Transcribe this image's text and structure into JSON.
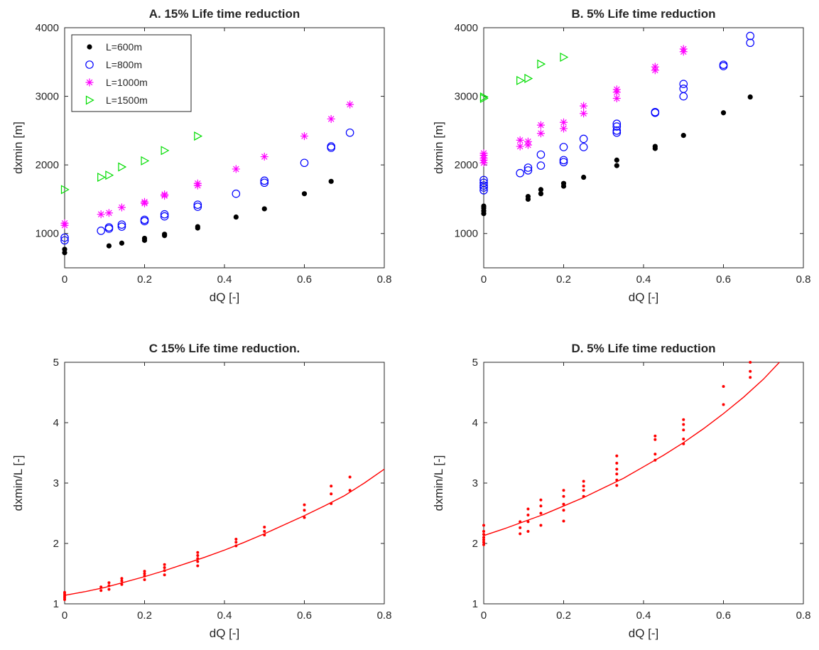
{
  "chart_data": [
    {
      "type": "scatter",
      "title": "A. 15% Life time reduction",
      "xlabel": "dQ [-]",
      "ylabel": "dxmin [m]",
      "xlim": [
        0,
        0.8
      ],
      "ylim": [
        500,
        4000
      ],
      "xticks": [
        "0",
        "0.2",
        "0.4",
        "0.6",
        "0.8"
      ],
      "yticks": [
        "1000",
        "2000",
        "3000",
        "4000"
      ],
      "legend_position": "top-left",
      "series": [
        {
          "name": "L=600m",
          "marker": "dot",
          "color": "#000000",
          "x": [
            0,
            0,
            0.111,
            0.143,
            0.2,
            0.2,
            0.25,
            0.25,
            0.333,
            0.333,
            0.429,
            0.5,
            0.6,
            0.667
          ],
          "y": [
            720,
            770,
            820,
            860,
            900,
            930,
            970,
            990,
            1080,
            1100,
            1240,
            1360,
            1580,
            1760
          ]
        },
        {
          "name": "L=800m",
          "marker": "circle",
          "color": "#0000ff",
          "x": [
            0,
            0,
            0.091,
            0.111,
            0.111,
            0.143,
            0.143,
            0.2,
            0.2,
            0.25,
            0.25,
            0.333,
            0.333,
            0.429,
            0.5,
            0.5,
            0.6,
            0.667,
            0.667,
            0.714
          ],
          "y": [
            900,
            940,
            1040,
            1070,
            1090,
            1100,
            1130,
            1180,
            1200,
            1250,
            1280,
            1390,
            1420,
            1580,
            1740,
            1770,
            2030,
            2250,
            2270,
            2470
          ]
        },
        {
          "name": "L=1000m",
          "marker": "star",
          "color": "#ff00ff",
          "x": [
            0,
            0,
            0.091,
            0.111,
            0.143,
            0.2,
            0.2,
            0.25,
            0.25,
            0.333,
            0.333,
            0.429,
            0.5,
            0.6,
            0.667,
            0.714
          ],
          "y": [
            1120,
            1150,
            1280,
            1300,
            1380,
            1440,
            1460,
            1550,
            1570,
            1700,
            1730,
            1940,
            2120,
            2420,
            2670,
            2880
          ]
        },
        {
          "name": "L=1500m",
          "marker": "triangle-right",
          "color": "#00dd00",
          "x": [
            0,
            0.091,
            0.111,
            0.143,
            0.2,
            0.25,
            0.333
          ],
          "y": [
            1640,
            1820,
            1850,
            1970,
            2060,
            2210,
            2420
          ]
        }
      ]
    },
    {
      "type": "scatter",
      "title": "B. 5% Life time reduction",
      "xlabel": "dQ [-]",
      "ylabel": "dxmin [m]",
      "xlim": [
        0,
        0.8
      ],
      "ylim": [
        500,
        4000
      ],
      "xticks": [
        "0",
        "0.2",
        "0.4",
        "0.6",
        "0.8"
      ],
      "yticks": [
        "1000",
        "2000",
        "3000",
        "4000"
      ],
      "series": [
        {
          "name": "L=600m",
          "marker": "dot",
          "color": "#000000",
          "x": [
            0,
            0,
            0,
            0,
            0.111,
            0.111,
            0.143,
            0.143,
            0.2,
            0.2,
            0.25,
            0.333,
            0.333,
            0.429,
            0.429,
            0.5,
            0.6,
            0.667
          ],
          "y": [
            1290,
            1330,
            1370,
            1400,
            1500,
            1540,
            1580,
            1640,
            1690,
            1730,
            1820,
            1990,
            2070,
            2240,
            2270,
            2430,
            2760,
            2990
          ]
        },
        {
          "name": "L=800m",
          "marker": "circle",
          "color": "#0000ff",
          "x": [
            0,
            0,
            0,
            0,
            0,
            0.091,
            0.111,
            0.111,
            0.143,
            0.143,
            0.2,
            0.2,
            0.2,
            0.25,
            0.25,
            0.333,
            0.333,
            0.333,
            0.333,
            0.429,
            0.429,
            0.5,
            0.5,
            0.5,
            0.6,
            0.6,
            0.667,
            0.667
          ],
          "y": [
            1630,
            1670,
            1700,
            1740,
            1780,
            1880,
            1920,
            1960,
            1990,
            2150,
            2040,
            2070,
            2260,
            2260,
            2380,
            2470,
            2500,
            2560,
            2600,
            2760,
            2770,
            3000,
            3110,
            3180,
            3440,
            3460,
            3780,
            3880
          ]
        },
        {
          "name": "L=1000m",
          "marker": "star",
          "color": "#ff00ff",
          "x": [
            0,
            0,
            0,
            0,
            0,
            0.091,
            0.091,
            0.111,
            0.111,
            0.143,
            0.143,
            0.2,
            0.2,
            0.25,
            0.25,
            0.333,
            0.333,
            0.333,
            0.429,
            0.429,
            0.5,
            0.5
          ],
          "y": [
            2030,
            2070,
            2100,
            2140,
            2170,
            2270,
            2360,
            2290,
            2340,
            2460,
            2580,
            2530,
            2620,
            2750,
            2860,
            2970,
            3060,
            3100,
            3380,
            3430,
            3650,
            3690
          ]
        },
        {
          "name": "L=1500m",
          "marker": "triangle-right",
          "color": "#00dd00",
          "x": [
            0,
            0,
            0.091,
            0.111,
            0.143,
            0.2
          ],
          "y": [
            2970,
            2990,
            3230,
            3260,
            3470,
            3570
          ]
        }
      ]
    },
    {
      "type": "scatter",
      "title": "C 15% Life time reduction.",
      "xlabel": "dQ [-]",
      "ylabel": "dxmin/L [-]",
      "xlim": [
        0,
        0.8
      ],
      "ylim": [
        1,
        5
      ],
      "xticks": [
        "0",
        "0.2",
        "0.4",
        "0.6",
        "0.8"
      ],
      "yticks": [
        "1",
        "2",
        "3",
        "4",
        "5"
      ],
      "series": [
        {
          "name": "",
          "marker": "dot-small",
          "color": "#ff0000",
          "x": [
            0,
            0,
            0,
            0,
            0,
            0.091,
            0.091,
            0.111,
            0.111,
            0.111,
            0.143,
            0.143,
            0.143,
            0.2,
            0.2,
            0.2,
            0.2,
            0.25,
            0.25,
            0.25,
            0.25,
            0.333,
            0.333,
            0.333,
            0.333,
            0.333,
            0.429,
            0.429,
            0.429,
            0.5,
            0.5,
            0.5,
            0.6,
            0.6,
            0.6,
            0.667,
            0.667,
            0.667,
            0.714,
            0.714
          ],
          "y": [
            1.07,
            1.1,
            1.13,
            1.16,
            1.19,
            1.22,
            1.28,
            1.24,
            1.3,
            1.35,
            1.32,
            1.38,
            1.42,
            1.4,
            1.46,
            1.5,
            1.54,
            1.48,
            1.55,
            1.6,
            1.65,
            1.63,
            1.7,
            1.75,
            1.8,
            1.85,
            1.96,
            2.02,
            2.07,
            2.14,
            2.2,
            2.27,
            2.43,
            2.55,
            2.64,
            2.66,
            2.82,
            2.95,
            2.88,
            3.1
          ]
        },
        {
          "name": "",
          "marker": "line",
          "color": "#ff0000",
          "x": [
            0,
            0.05,
            0.1,
            0.15,
            0.2,
            0.25,
            0.3,
            0.35,
            0.4,
            0.45,
            0.5,
            0.55,
            0.6,
            0.65,
            0.7,
            0.75,
            0.8
          ],
          "y": [
            1.14,
            1.2,
            1.27,
            1.36,
            1.45,
            1.55,
            1.66,
            1.77,
            1.89,
            2.02,
            2.16,
            2.31,
            2.46,
            2.62,
            2.79,
            3.0,
            3.23
          ]
        }
      ]
    },
    {
      "type": "scatter",
      "title": "D. 5% Life time reduction",
      "xlabel": "dQ [-]",
      "ylabel": "dxmin/L [-]",
      "xlim": [
        0,
        0.8
      ],
      "ylim": [
        1,
        5
      ],
      "xticks": [
        "0",
        "0.2",
        "0.4",
        "0.6",
        "0.8"
      ],
      "yticks": [
        "1",
        "2",
        "3",
        "4",
        "5"
      ],
      "series": [
        {
          "name": "",
          "marker": "dot-small",
          "color": "#ff0000",
          "x": [
            0,
            0,
            0,
            0,
            0,
            0,
            0,
            0.091,
            0.091,
            0.091,
            0.111,
            0.111,
            0.111,
            0.111,
            0.143,
            0.143,
            0.143,
            0.143,
            0.2,
            0.2,
            0.2,
            0.2,
            0.2,
            0.25,
            0.25,
            0.25,
            0.25,
            0.333,
            0.333,
            0.333,
            0.333,
            0.333,
            0.333,
            0.429,
            0.429,
            0.429,
            0.429,
            0.5,
            0.5,
            0.5,
            0.5,
            0.5,
            0.6,
            0.6,
            0.667,
            0.667,
            0.667
          ],
          "y": [
            1.98,
            2.02,
            2.06,
            2.1,
            2.15,
            2.2,
            2.3,
            2.16,
            2.26,
            2.36,
            2.2,
            2.36,
            2.47,
            2.57,
            2.3,
            2.5,
            2.62,
            2.72,
            2.37,
            2.55,
            2.65,
            2.78,
            2.88,
            2.78,
            2.88,
            2.95,
            3.03,
            2.96,
            3.05,
            3.15,
            3.23,
            3.33,
            3.45,
            3.38,
            3.48,
            3.72,
            3.78,
            3.65,
            3.73,
            3.88,
            3.97,
            4.05,
            4.3,
            4.6,
            4.75,
            4.85,
            5.0
          ]
        },
        {
          "name": "",
          "marker": "line",
          "color": "#ff0000",
          "x": [
            0,
            0.05,
            0.1,
            0.15,
            0.2,
            0.25,
            0.3,
            0.35,
            0.4,
            0.45,
            0.5,
            0.55,
            0.6,
            0.65,
            0.7,
            0.74
          ],
          "y": [
            2.13,
            2.24,
            2.36,
            2.48,
            2.62,
            2.76,
            2.92,
            3.08,
            3.27,
            3.46,
            3.67,
            3.9,
            4.15,
            4.42,
            4.72,
            5.0
          ]
        }
      ]
    }
  ]
}
